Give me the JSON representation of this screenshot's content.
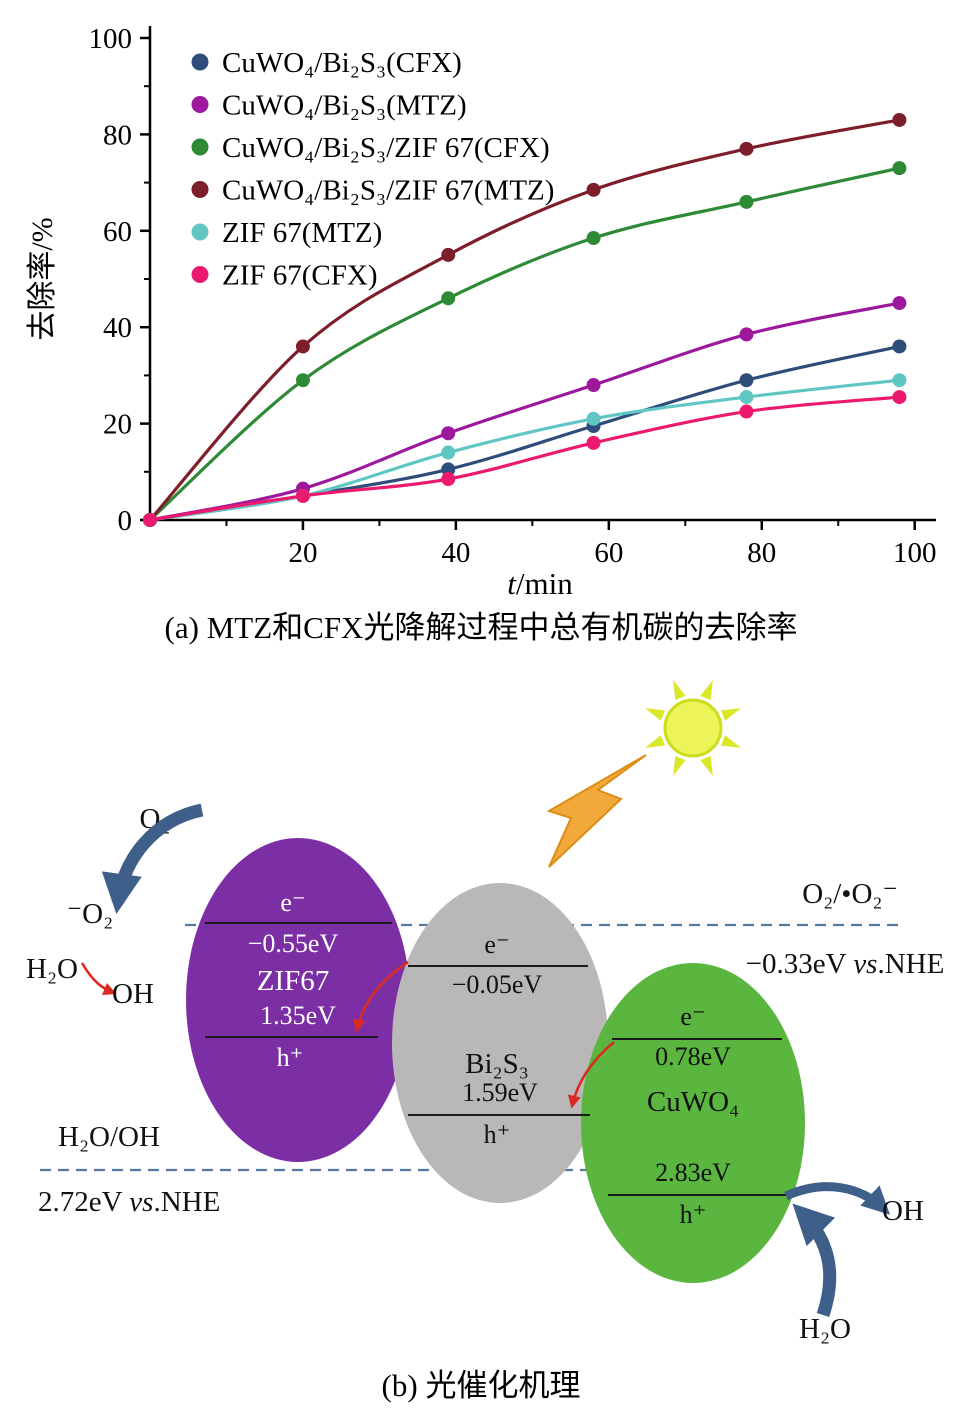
{
  "captions": {
    "a": "(a) MTZ和CFX光降解过程中总有机碳的去除率",
    "b": "(b) 光催化机理"
  },
  "chart_data": {
    "type": "line",
    "title": "",
    "xlabel": "t/min",
    "ylabel": "去除率/%",
    "xlim": [
      0,
      102
    ],
    "ylim": [
      0,
      100
    ],
    "x_ticks": [
      20,
      40,
      60,
      80,
      100
    ],
    "y_ticks": [
      0,
      20,
      40,
      60,
      80,
      100
    ],
    "grid": false,
    "legend_position": "top-left",
    "x": [
      0,
      20,
      39,
      58,
      78,
      98
    ],
    "series": [
      {
        "name": "CuWO₄/Bi₂S₃(CFX)",
        "color": "#2e4d7b",
        "values": [
          0,
          5,
          10.5,
          19.5,
          29,
          36
        ]
      },
      {
        "name": "CuWO₄/Bi₂S₃(MTZ)",
        "color": "#9c189c",
        "values": [
          0,
          6.5,
          18,
          28,
          38.5,
          45
        ]
      },
      {
        "name": "CuWO₄/Bi₂S₃/ZIF 67(CFX)",
        "color": "#2f8a36",
        "values": [
          0,
          29,
          46,
          58.5,
          66,
          73
        ]
      },
      {
        "name": "CuWO₄/Bi₂S₃/ZIF 67(MTZ)",
        "color": "#7e1e2b",
        "values": [
          0,
          36,
          55,
          68.5,
          77,
          83
        ]
      },
      {
        "name": "ZIF 67(MTZ)",
        "color": "#5fc6c4",
        "values": [
          0,
          5,
          14,
          21,
          25.5,
          29
        ]
      },
      {
        "name": "ZIF 67(CFX)",
        "color": "#ec1a6e",
        "values": [
          0,
          5,
          8.5,
          16,
          22.5,
          25.5
        ]
      }
    ]
  },
  "mechanism": {
    "zif67": {
      "label": "ZIF67",
      "e": "e⁻",
      "cb": "−0.55eV",
      "vb_ev": "1.35eV",
      "h": "h⁺",
      "color": "#7c2fa5"
    },
    "bi2s3": {
      "label": "Bi₂S₃",
      "e": "e⁻",
      "cb": "−0.05eV",
      "vb_ev": "1.59eV",
      "h": "h⁺",
      "color": "#b9b7b7"
    },
    "cuwo4": {
      "label": "CuWO₄",
      "e": "e⁻",
      "cb": "0.78eV",
      "vb_ev": "2.83eV",
      "h": "h⁺",
      "color": "#5ab63e"
    },
    "nhe_top": {
      "couple": "O₂/•O₂⁻",
      "value": "−0.33eV ",
      "vs": "vs",
      "rest": ".NHE"
    },
    "nhe_bottom": {
      "couple": "H₂O/OH",
      "value": "2.72eV ",
      "vs": "vs",
      "rest": ".NHE"
    },
    "left": {
      "o2": "O₂",
      "superoxide": "⁻O₂",
      "h2o": "H₂O",
      "oh": "OH"
    },
    "right": {
      "oh": "OH",
      "h2o": "H₂O"
    }
  }
}
